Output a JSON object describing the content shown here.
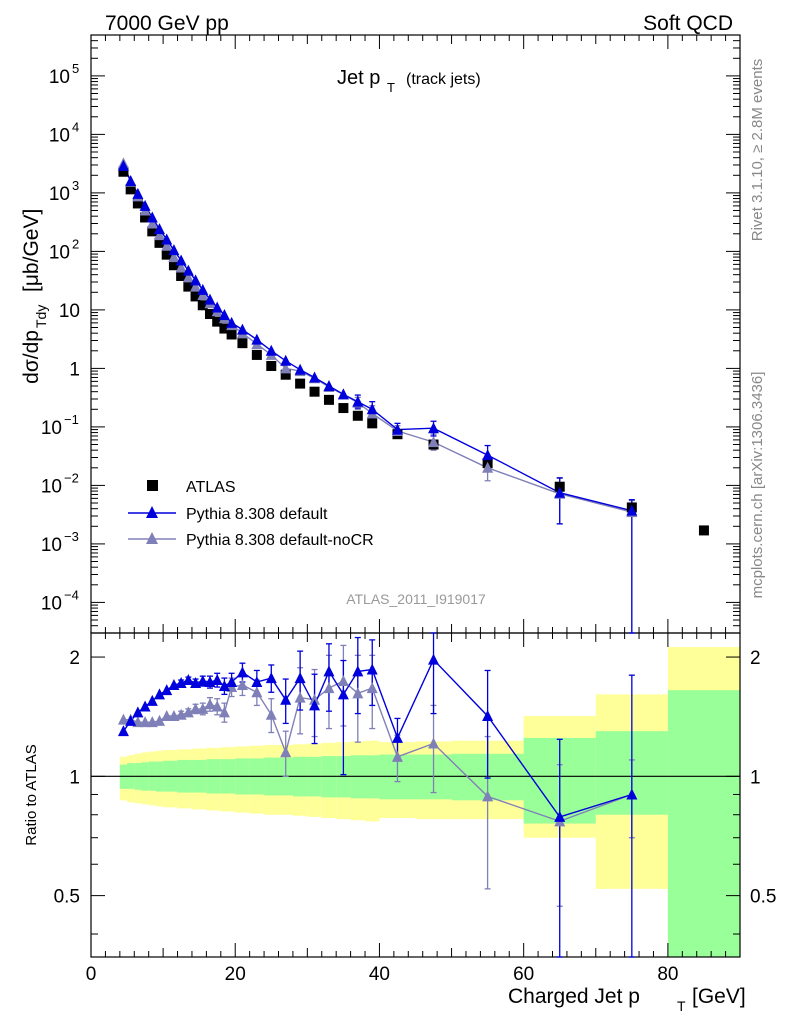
{
  "header": {
    "left": "7000 GeV pp",
    "right": "Soft QCD"
  },
  "side_text": {
    "rivet": "Rivet 3.1.10, ≥ 2.8M events",
    "mcplots": "mcplots.cern.ch [arXiv:1306.3436]"
  },
  "colors": {
    "data": "#000000",
    "default": "#0000dd",
    "nocr": "#8080b8",
    "band_green": "#99ff99",
    "band_yellow": "#ffff99"
  },
  "chart_data": [
    {
      "type": "scatter",
      "title_main": "Jet p",
      "title_sub": "T",
      "title_extra": "(track jets)",
      "ylabel": "dσ/dp",
      "ylabel_sub": "Tdy",
      "ylabel_units": "[μb/GeV]",
      "yscale": "log",
      "ylim": [
        3e-05,
        500000.0
      ],
      "xlim": [
        0,
        90
      ],
      "watermark": "ATLAS_2011_I919017",
      "yticks": [
        {
          "v": 100000,
          "b": "10",
          "e": "5"
        },
        {
          "v": 10000,
          "b": "10",
          "e": "4"
        },
        {
          "v": 1000,
          "b": "10",
          "e": "3"
        },
        {
          "v": 100,
          "b": "10",
          "e": "2"
        },
        {
          "v": 10,
          "b": "10",
          "e": ""
        },
        {
          "v": 1,
          "b": "1",
          "e": ""
        },
        {
          "v": 0.1,
          "b": "10",
          "e": "−1"
        },
        {
          "v": 0.01,
          "b": "10",
          "e": "−2"
        },
        {
          "v": 0.001,
          "b": "10",
          "e": "−3"
        },
        {
          "v": 0.0001,
          "b": "10",
          "e": "−4"
        }
      ],
      "legend": {
        "placement": "lower-left",
        "entries": [
          "ATLAS",
          "Pythia 8.308 default",
          "Pythia 8.308 default-noCR"
        ]
      },
      "series": [
        {
          "name": "ATLAS",
          "marker": "square",
          "x": [
            4.5,
            5.5,
            6.5,
            7.5,
            8.5,
            9.5,
            10.5,
            11.5,
            12.5,
            13.5,
            14.5,
            15.5,
            16.5,
            17.5,
            18.5,
            19.5,
            21,
            23,
            25,
            27,
            29,
            31,
            33,
            35,
            37,
            39,
            42.5,
            47.5,
            55,
            65,
            75,
            85
          ],
          "y": [
            2300,
            1150,
            660,
            380,
            220,
            140,
            88,
            58,
            38,
            25,
            17,
            12,
            8.5,
            6.3,
            4.8,
            3.8,
            2.7,
            1.7,
            1.1,
            0.78,
            0.55,
            0.4,
            0.29,
            0.21,
            0.155,
            0.115,
            0.075,
            0.05,
            0.024,
            0.0095,
            0.0042,
            0.0017
          ]
        },
        {
          "name": "Pythia 8.308 default",
          "marker": "triangle",
          "x": [
            4.5,
            5.5,
            6.5,
            7.5,
            8.5,
            9.5,
            10.5,
            11.5,
            12.5,
            13.5,
            14.5,
            15.5,
            16.5,
            17.5,
            18.5,
            19.5,
            21,
            23,
            25,
            27,
            29,
            31,
            33,
            35,
            37,
            39,
            42.5,
            47.5,
            55,
            65,
            75
          ],
          "y": [
            2900,
            1600,
            960,
            600,
            380,
            240,
            160,
            105,
            70,
            47,
            32,
            22,
            15,
            11,
            8.2,
            6,
            4.6,
            3.1,
            2,
            1.35,
            0.95,
            0.7,
            0.5,
            0.36,
            0.27,
            0.2,
            0.09,
            0.095,
            0.033,
            0.0075,
            0.0037
          ],
          "err_lo": [
            0,
            0,
            0,
            0,
            0,
            0,
            0,
            0,
            0,
            0,
            0,
            0,
            0,
            0,
            0,
            0,
            0,
            0,
            0,
            0,
            0,
            0,
            0,
            0,
            0.06,
            0.06,
            0.02,
            0.025,
            0.012,
            0.0053,
            0.0037
          ],
          "err_hi": [
            0,
            0,
            0,
            0,
            0,
            0,
            0,
            0,
            0,
            0,
            0,
            0,
            0,
            0,
            0,
            0,
            0,
            0,
            0,
            0,
            0,
            0,
            0,
            0,
            0.08,
            0.07,
            0.025,
            0.03,
            0.015,
            0.006,
            0.002
          ]
        },
        {
          "name": "Pythia 8.308 default-noCR",
          "marker": "triangle",
          "x": [
            4.5,
            5.5,
            6.5,
            7.5,
            8.5,
            9.5,
            10.5,
            11.5,
            12.5,
            13.5,
            14.5,
            15.5,
            16.5,
            17.5,
            18.5,
            19.5,
            21,
            23,
            25,
            27,
            29,
            31,
            33,
            35,
            37,
            39,
            42.5,
            47.5,
            55,
            65,
            75
          ],
          "y": [
            3200,
            1550,
            870,
            500,
            300,
            190,
            125,
            80,
            53,
            36,
            25,
            18,
            13,
            9.5,
            7.2,
            5.5,
            4,
            2.6,
            1.7,
            1.0,
            0.9,
            0.68,
            0.48,
            0.36,
            0.26,
            0.17,
            0.085,
            0.055,
            0.02,
            0.0072,
            0.0035
          ],
          "err_lo": [
            0,
            0,
            0,
            0,
            0,
            0,
            0,
            0,
            0,
            0,
            0,
            0,
            0,
            0,
            0,
            0,
            0,
            0,
            0,
            0,
            0,
            0,
            0,
            0,
            0.06,
            0.05,
            0.02,
            0.015,
            0.008,
            0.005,
            0.0035
          ],
          "err_hi": [
            0,
            0,
            0,
            0,
            0,
            0,
            0,
            0,
            0,
            0,
            0,
            0,
            0,
            0,
            0,
            0,
            0,
            0,
            0,
            0,
            0,
            0,
            0,
            0,
            0.06,
            0.06,
            0.02,
            0.02,
            0.01,
            0.006,
            0.002
          ]
        }
      ]
    },
    {
      "type": "scatter",
      "ylabel": "Ratio to ATLAS",
      "xlabel_main": "Charged Jet p",
      "xlabel_sub": "T",
      "xlabel_units": "[GeV]",
      "yscale": "log",
      "ylim": [
        0.35,
        2.3
      ],
      "xlim": [
        0,
        90
      ],
      "xticks": [
        0,
        20,
        40,
        60,
        80
      ],
      "yticks": [
        {
          "v": 0.5,
          "label": "0.5"
        },
        {
          "v": 1,
          "label": "1"
        },
        {
          "v": 2,
          "label": "2"
        }
      ],
      "bands": [
        {
          "x0": 4,
          "x1": 5,
          "g_lo": 0.93,
          "g_hi": 1.07,
          "y_lo": 0.87,
          "y_hi": 1.12
        },
        {
          "x0": 5,
          "x1": 6,
          "g_lo": 0.93,
          "g_hi": 1.08,
          "y_lo": 0.86,
          "y_hi": 1.13
        },
        {
          "x0": 6,
          "x1": 7,
          "g_lo": 0.925,
          "g_hi": 1.08,
          "y_lo": 0.855,
          "y_hi": 1.14
        },
        {
          "x0": 7,
          "x1": 8,
          "g_lo": 0.92,
          "g_hi": 1.085,
          "y_lo": 0.85,
          "y_hi": 1.15
        },
        {
          "x0": 8,
          "x1": 9,
          "g_lo": 0.92,
          "g_hi": 1.09,
          "y_lo": 0.845,
          "y_hi": 1.155
        },
        {
          "x0": 9,
          "x1": 10,
          "g_lo": 0.915,
          "g_hi": 1.09,
          "y_lo": 0.84,
          "y_hi": 1.16
        },
        {
          "x0": 10,
          "x1": 12,
          "g_lo": 0.915,
          "g_hi": 1.095,
          "y_lo": 0.835,
          "y_hi": 1.165
        },
        {
          "x0": 12,
          "x1": 14,
          "g_lo": 0.91,
          "g_hi": 1.1,
          "y_lo": 0.83,
          "y_hi": 1.17
        },
        {
          "x0": 14,
          "x1": 16,
          "g_lo": 0.91,
          "g_hi": 1.1,
          "y_lo": 0.825,
          "y_hi": 1.175
        },
        {
          "x0": 16,
          "x1": 18,
          "g_lo": 0.905,
          "g_hi": 1.105,
          "y_lo": 0.82,
          "y_hi": 1.18
        },
        {
          "x0": 18,
          "x1": 20,
          "g_lo": 0.905,
          "g_hi": 1.105,
          "y_lo": 0.815,
          "y_hi": 1.185
        },
        {
          "x0": 20,
          "x1": 22,
          "g_lo": 0.9,
          "g_hi": 1.11,
          "y_lo": 0.81,
          "y_hi": 1.19
        },
        {
          "x0": 22,
          "x1": 24,
          "g_lo": 0.9,
          "g_hi": 1.11,
          "y_lo": 0.805,
          "y_hi": 1.195
        },
        {
          "x0": 24,
          "x1": 26,
          "g_lo": 0.895,
          "g_hi": 1.115,
          "y_lo": 0.8,
          "y_hi": 1.2
        },
        {
          "x0": 26,
          "x1": 28,
          "g_lo": 0.895,
          "g_hi": 1.115,
          "y_lo": 0.8,
          "y_hi": 1.2
        },
        {
          "x0": 28,
          "x1": 30,
          "g_lo": 0.89,
          "g_hi": 1.12,
          "y_lo": 0.795,
          "y_hi": 1.205
        },
        {
          "x0": 30,
          "x1": 32,
          "g_lo": 0.89,
          "g_hi": 1.12,
          "y_lo": 0.79,
          "y_hi": 1.21
        },
        {
          "x0": 32,
          "x1": 34,
          "g_lo": 0.885,
          "g_hi": 1.125,
          "y_lo": 0.785,
          "y_hi": 1.215
        },
        {
          "x0": 34,
          "x1": 36,
          "g_lo": 0.885,
          "g_hi": 1.125,
          "y_lo": 0.78,
          "y_hi": 1.22
        },
        {
          "x0": 36,
          "x1": 38,
          "g_lo": 0.88,
          "g_hi": 1.13,
          "y_lo": 0.775,
          "y_hi": 1.225
        },
        {
          "x0": 38,
          "x1": 40,
          "g_lo": 0.88,
          "g_hi": 1.13,
          "y_lo": 0.77,
          "y_hi": 1.23
        },
        {
          "x0": 40,
          "x1": 45,
          "g_lo": 0.875,
          "g_hi": 1.135,
          "y_lo": 0.785,
          "y_hi": 1.22
        },
        {
          "x0": 45,
          "x1": 50,
          "g_lo": 0.875,
          "g_hi": 1.135,
          "y_lo": 0.78,
          "y_hi": 1.225
        },
        {
          "x0": 50,
          "x1": 60,
          "g_lo": 0.87,
          "g_hi": 1.14,
          "y_lo": 0.78,
          "y_hi": 1.23
        },
        {
          "x0": 60,
          "x1": 70,
          "g_lo": 0.76,
          "g_hi": 1.25,
          "y_lo": 0.7,
          "y_hi": 1.42
        },
        {
          "x0": 70,
          "x1": 80,
          "g_lo": 0.8,
          "g_hi": 1.3,
          "y_lo": 0.52,
          "y_hi": 1.61
        },
        {
          "x0": 80,
          "x1": 90,
          "g_lo": 0.35,
          "g_hi": 1.65,
          "y_lo": 0.35,
          "y_hi": 2.12
        }
      ],
      "series": [
        {
          "name": "Pythia 8.308 default",
          "x": [
            4.5,
            5.5,
            6.5,
            7.5,
            8.5,
            9.5,
            10.5,
            11.5,
            12.5,
            13.5,
            14.5,
            15.5,
            16.5,
            17.5,
            18.5,
            19.5,
            21,
            23,
            25,
            27,
            29,
            31,
            33,
            35,
            37,
            39,
            42.5,
            47.5,
            55,
            65,
            75
          ],
          "y": [
            1.3,
            1.38,
            1.45,
            1.5,
            1.55,
            1.61,
            1.65,
            1.7,
            1.72,
            1.75,
            1.72,
            1.74,
            1.73,
            1.75,
            1.69,
            1.73,
            1.83,
            1.73,
            1.77,
            1.56,
            1.77,
            1.51,
            1.84,
            1.61,
            1.84,
            1.86,
            1.25,
            1.97,
            1.42,
            0.79,
            0.9
          ],
          "err_lo": [
            0.02,
            0.02,
            0.02,
            0.02,
            0.02,
            0.02,
            0.02,
            0.02,
            0.03,
            0.03,
            0.04,
            0.05,
            0.06,
            0.07,
            0.08,
            0.09,
            0.1,
            0.12,
            0.14,
            0.2,
            0.3,
            0.3,
            0.38,
            0.6,
            0.4,
            0.35,
            0.15,
            0.53,
            0.43,
            0.45,
            0.55
          ],
          "err_hi": [
            0.02,
            0.02,
            0.02,
            0.02,
            0.02,
            0.02,
            0.02,
            0.02,
            0.03,
            0.03,
            0.04,
            0.05,
            0.06,
            0.07,
            0.08,
            0.09,
            0.1,
            0.12,
            0.14,
            0.2,
            0.3,
            0.3,
            0.32,
            0.35,
            0.4,
            0.35,
            0.15,
            0.4,
            0.43,
            0.45,
            0.9
          ]
        },
        {
          "name": "Pythia 8.308 default-noCR",
          "x": [
            4.5,
            5.5,
            6.5,
            7.5,
            8.5,
            9.5,
            10.5,
            11.5,
            12.5,
            13.5,
            14.5,
            15.5,
            16.5,
            17.5,
            18.5,
            19.5,
            21,
            23,
            25,
            27,
            29,
            31,
            33,
            35,
            37,
            39,
            42.5,
            47.5,
            55,
            65,
            75
          ],
          "y": [
            1.39,
            1.39,
            1.37,
            1.37,
            1.37,
            1.38,
            1.42,
            1.42,
            1.43,
            1.45,
            1.48,
            1.48,
            1.52,
            1.5,
            1.45,
            1.68,
            1.7,
            1.63,
            1.43,
            1.15,
            1.58,
            1.56,
            1.67,
            1.74,
            1.62,
            1.67,
            1.12,
            1.21,
            0.89,
            0.77,
            0.9
          ],
          "err_lo": [
            0.02,
            0.02,
            0.02,
            0.02,
            0.02,
            0.02,
            0.02,
            0.02,
            0.03,
            0.03,
            0.04,
            0.05,
            0.06,
            0.07,
            0.08,
            0.09,
            0.1,
            0.12,
            0.14,
            0.15,
            0.3,
            0.3,
            0.35,
            0.4,
            0.4,
            0.35,
            0.15,
            0.3,
            0.37,
            0.3,
            0.2
          ],
          "err_hi": [
            0.02,
            0.02,
            0.02,
            0.02,
            0.02,
            0.02,
            0.02,
            0.02,
            0.03,
            0.03,
            0.04,
            0.05,
            0.06,
            0.07,
            0.08,
            0.09,
            0.1,
            0.12,
            0.14,
            0.15,
            0.3,
            0.3,
            0.35,
            0.4,
            0.4,
            0.35,
            0.15,
            0.3,
            0.37,
            0.3,
            0.2
          ]
        }
      ]
    }
  ]
}
